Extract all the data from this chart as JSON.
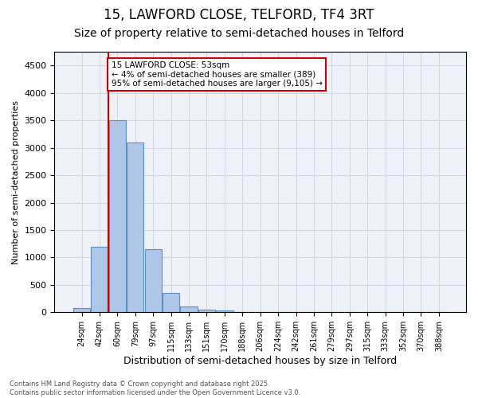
{
  "title1": "15, LAWFORD CLOSE, TELFORD, TF4 3RT",
  "title2": "Size of property relative to semi-detached houses in Telford",
  "xlabel": "Distribution of semi-detached houses by size in Telford",
  "ylabel": "Number of semi-detached properties",
  "bar_values": [
    75,
    1200,
    3500,
    3100,
    1150,
    350,
    100,
    50,
    30,
    10,
    0,
    0,
    0,
    0,
    0,
    0,
    0,
    0,
    0,
    0,
    0
  ],
  "bar_labels": [
    "24sqm",
    "42sqm",
    "60sqm",
    "79sqm",
    "97sqm",
    "115sqm",
    "133sqm",
    "151sqm",
    "170sqm",
    "188sqm",
    "206sqm",
    "224sqm",
    "242sqm",
    "261sqm",
    "279sqm",
    "297sqm",
    "315sqm",
    "333sqm",
    "352sqm",
    "370sqm",
    "388sqm"
  ],
  "bar_color": "#aec6e8",
  "bar_edge_color": "#5a8fc2",
  "grid_color": "#d0d8e8",
  "background_color": "#eef2f8",
  "vline_x": 1.5,
  "vline_color": "#cc0000",
  "annotation_text": "15 LAWFORD CLOSE: 53sqm\n← 4% of semi-detached houses are smaller (389)\n95% of semi-detached houses are larger (9,105) →",
  "annotation_box_color": "#cc0000",
  "ylim": [
    0,
    4750
  ],
  "yticks": [
    0,
    500,
    1000,
    1500,
    2000,
    2500,
    3000,
    3500,
    4000,
    4500
  ],
  "footer": "Contains HM Land Registry data © Crown copyright and database right 2025.\nContains public sector information licensed under the Open Government Licence v3.0.",
  "title_fontsize": 12,
  "subtitle_fontsize": 10
}
